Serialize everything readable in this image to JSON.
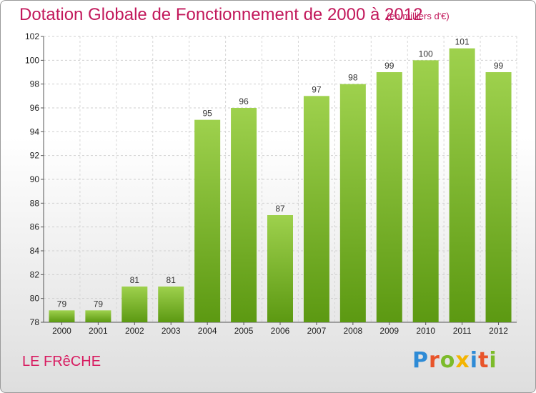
{
  "title": "Dotation Globale de Fonctionnement de 2000 à 2012",
  "units": "(en milliers d'€)",
  "commune": "LE FRêCHE",
  "logo": {
    "letters": [
      {
        "char": "P",
        "color": "#2e8bd6"
      },
      {
        "char": "r",
        "color": "#e8542a"
      },
      {
        "char": "o",
        "color": "#7cbb2a"
      },
      {
        "char": "x",
        "color": "#f4b400"
      },
      {
        "char": "i",
        "color": "#2e8bd6"
      },
      {
        "char": "t",
        "color": "#e8542a"
      },
      {
        "char": "i",
        "color": "#7cbb2a"
      }
    ]
  },
  "colors": {
    "accent": "#c2185b",
    "bar_top": "#9ed14d",
    "bar_bottom": "#5c9912"
  },
  "chart_data": {
    "type": "bar",
    "categories": [
      "2000",
      "2001",
      "2002",
      "2003",
      "2004",
      "2005",
      "2006",
      "2007",
      "2008",
      "2009",
      "2010",
      "2011",
      "2012"
    ],
    "values": [
      79,
      79,
      81,
      81,
      95,
      96,
      87,
      97,
      98,
      99,
      100,
      101,
      99
    ],
    "title": "Dotation Globale de Fonctionnement de 2000 à 2012",
    "xlabel": "",
    "ylabel": "",
    "ylim": [
      78,
      102
    ],
    "yticks": [
      78,
      80,
      82,
      84,
      86,
      88,
      90,
      92,
      94,
      96,
      98,
      100,
      102
    ],
    "grid": true,
    "legend": "none"
  }
}
